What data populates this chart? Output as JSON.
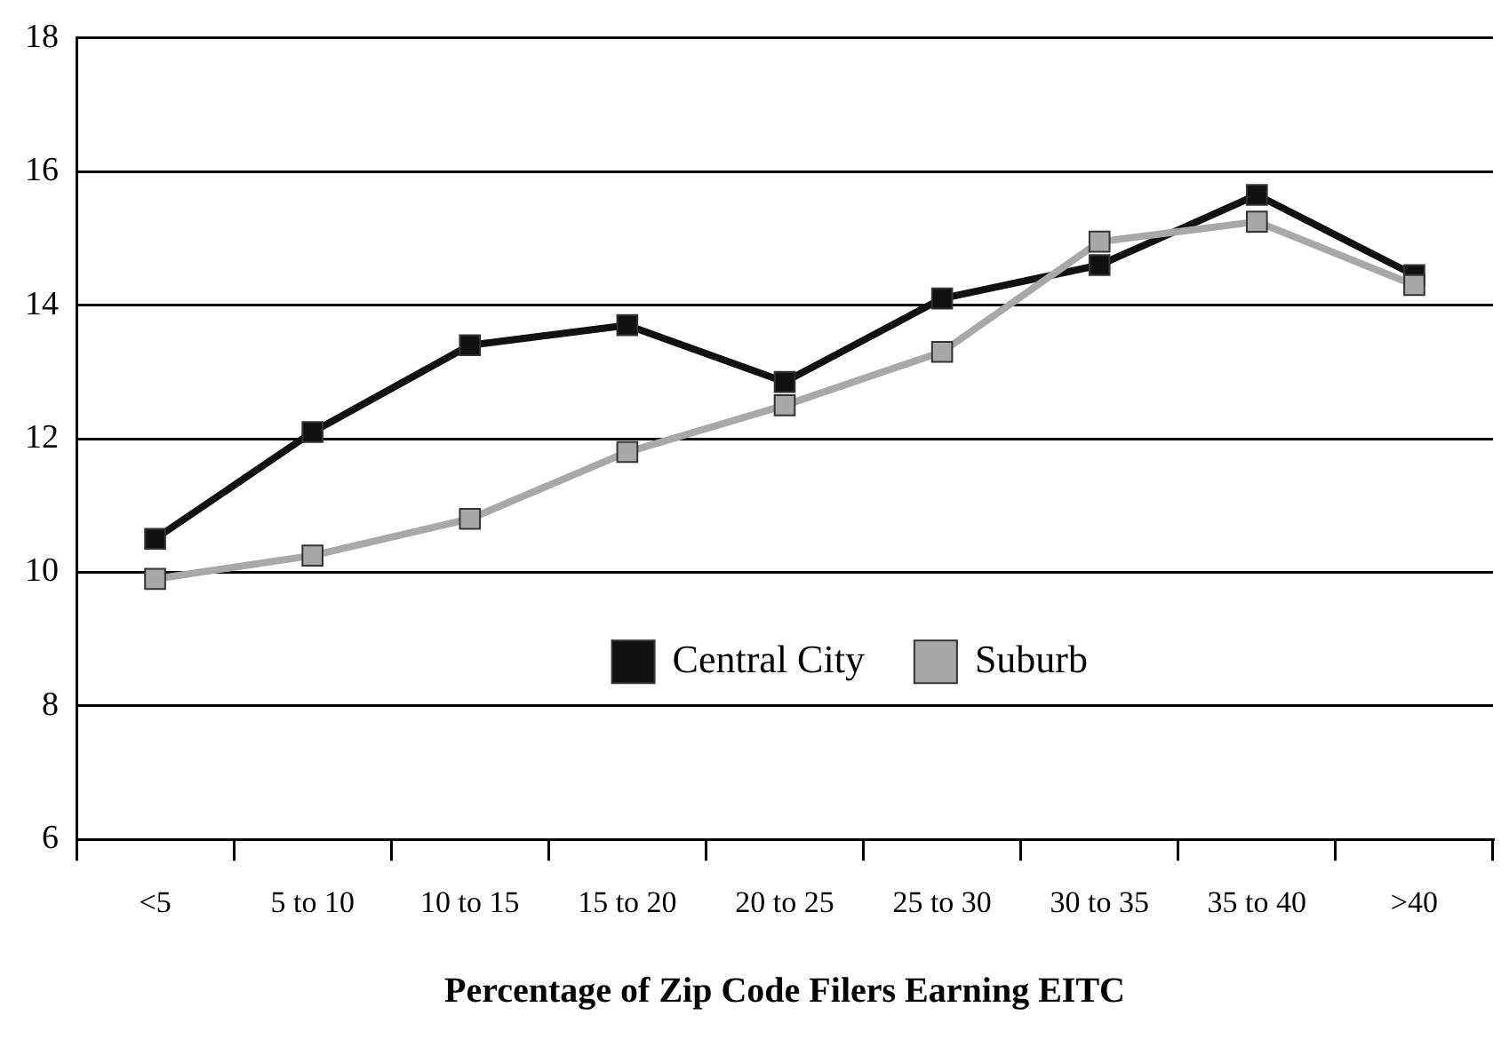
{
  "chart_data": {
    "type": "line",
    "xlabel": "Percentage of Zip Code Filers Earning EITC",
    "categories": [
      "<5",
      "5 to 10",
      "10 to 15",
      "15 to 20",
      "20 to 25",
      "25 to 30",
      "30 to 35",
      "35 to 40",
      ">40"
    ],
    "series": [
      {
        "name": "Central City",
        "color": "#111111",
        "values": [
          10.5,
          12.1,
          13.4,
          13.7,
          12.85,
          14.1,
          14.6,
          15.65,
          14.45
        ]
      },
      {
        "name": "Suburb",
        "color": "#a8a8a8",
        "values": [
          9.9,
          10.25,
          10.8,
          11.8,
          12.5,
          13.3,
          14.95,
          15.25,
          14.3
        ]
      }
    ],
    "ylim": [
      6,
      18
    ],
    "yticks": [
      6,
      8,
      10,
      12,
      14,
      16,
      18
    ],
    "grid": "y",
    "legend": "bottom right",
    "marker": "square",
    "line_style": "solid"
  }
}
